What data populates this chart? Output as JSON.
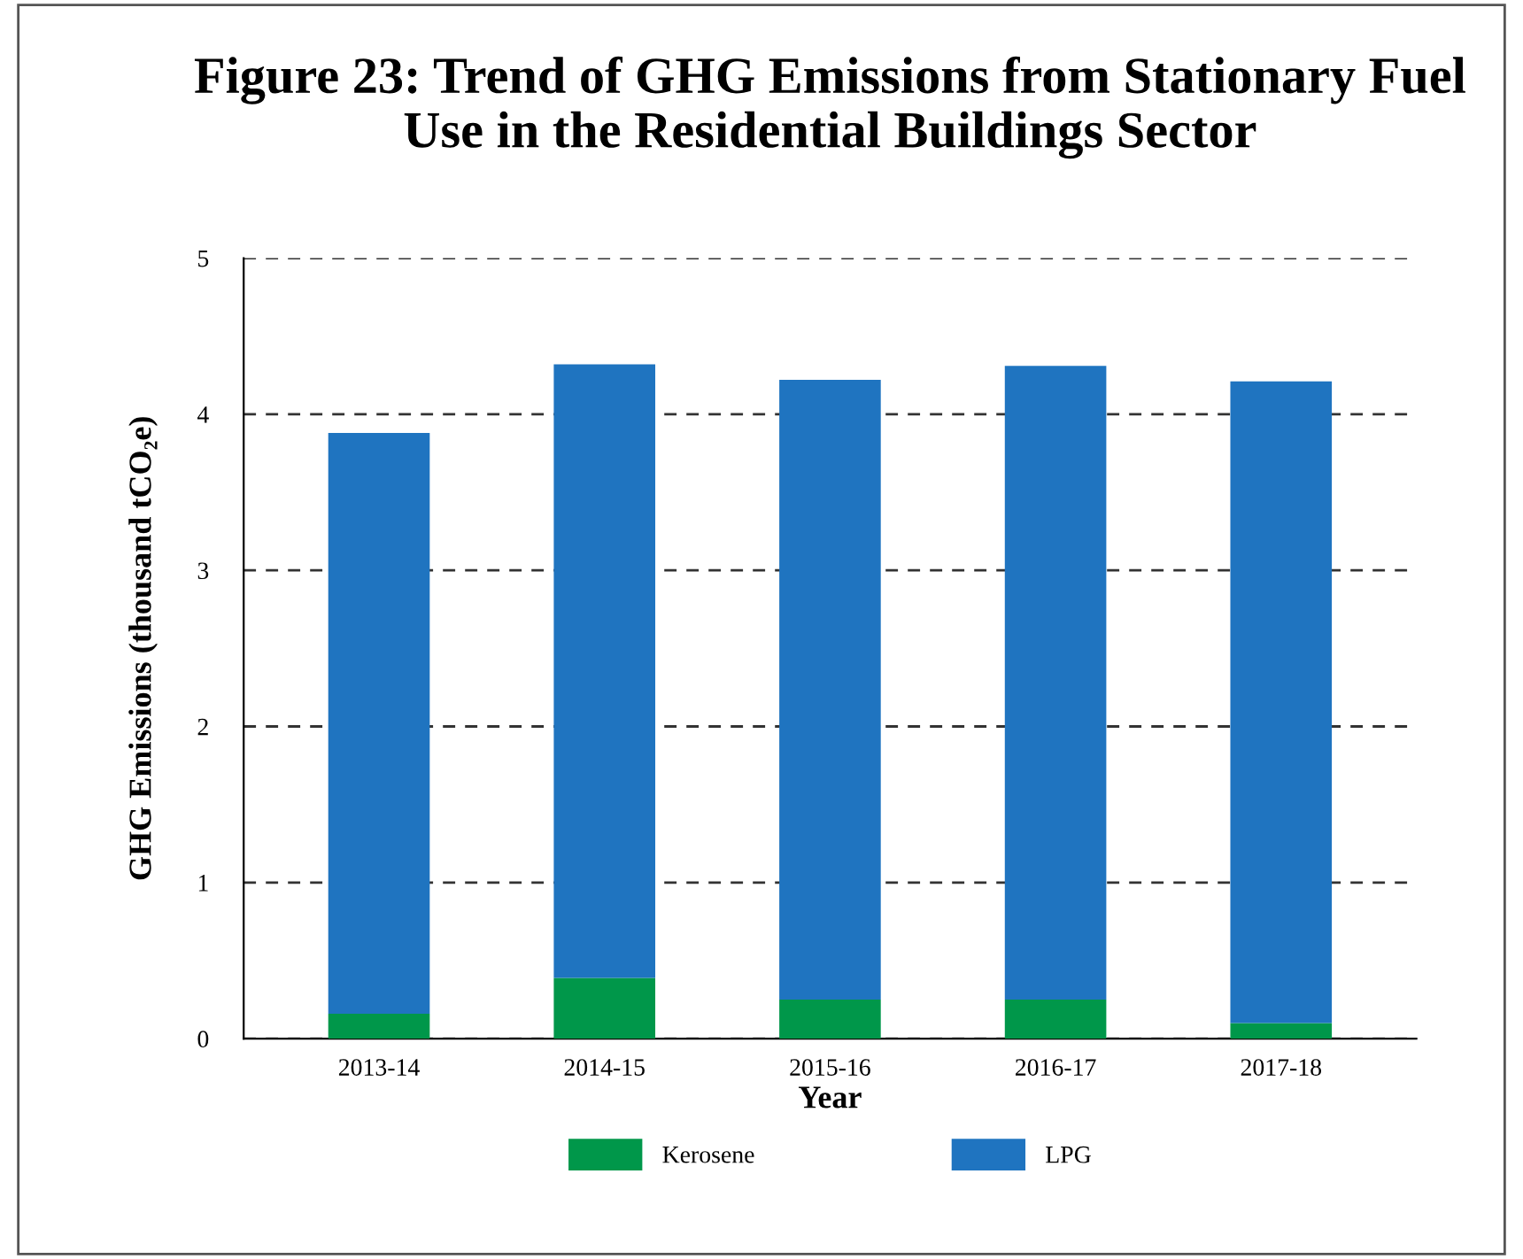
{
  "chart_data": {
    "type": "bar",
    "title": "Figure 23: Trend of GHG Emissions from Stationary Fuel\nUse in the Residential Buildings Sector",
    "xlabel": "Year",
    "ylabel": "GHG Emissions (thousand tCO₂e)",
    "categories": [
      "2013-14",
      "2014-15",
      "2015-16",
      "2016-17",
      "2017-18"
    ],
    "stacked": true,
    "series": [
      {
        "name": "Kerosene",
        "color": "#00974a",
        "values": [
          0.16,
          0.39,
          0.25,
          0.25,
          0.1
        ]
      },
      {
        "name": "LPG",
        "color": "#1f74c0",
        "values": [
          3.72,
          3.93,
          3.97,
          4.06,
          4.11
        ]
      }
    ],
    "ylim": [
      0,
      5
    ],
    "yticks": [
      0,
      1,
      2,
      3,
      4,
      5
    ],
    "grid": "y",
    "legend": "bottom"
  }
}
